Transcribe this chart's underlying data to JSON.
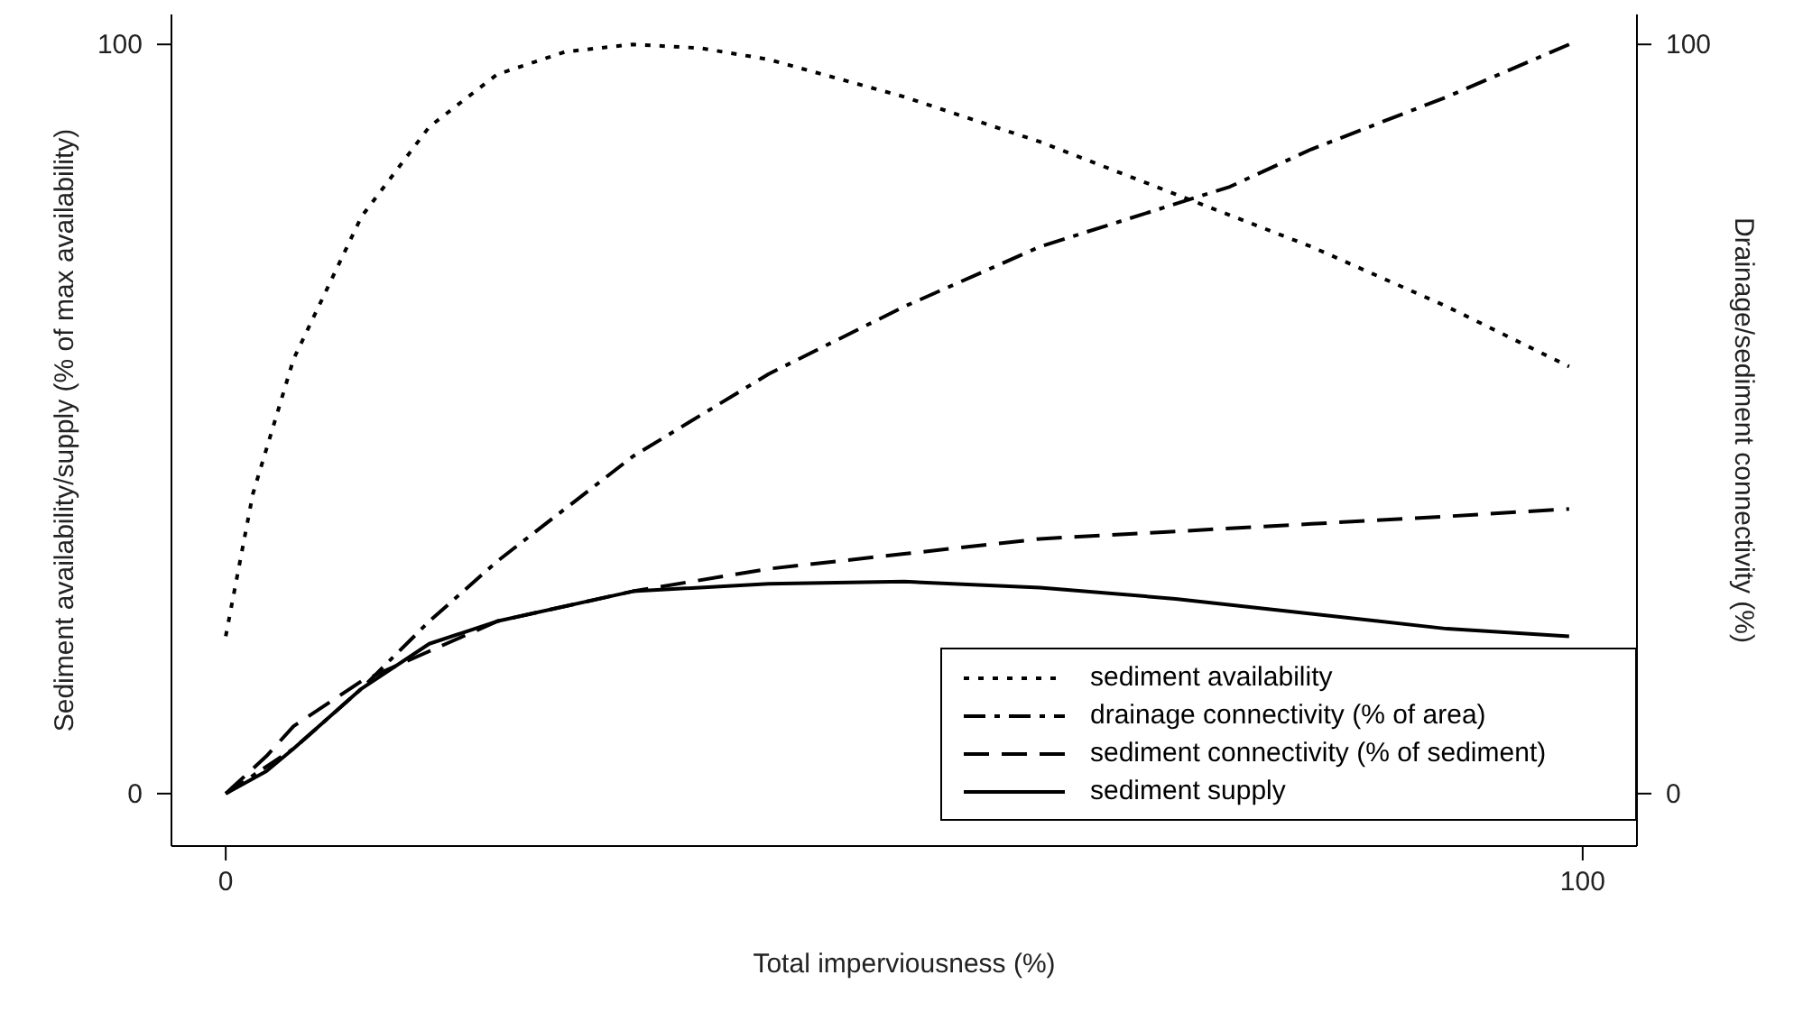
{
  "chart_data": {
    "type": "line",
    "xlabel": "Total imperviousness (%)",
    "ylabel": "Sediment availability/supply (% of max availability)",
    "y2label": "Drainage/sediment connectivity (%)",
    "xlim": [
      -4,
      104
    ],
    "xticks": [
      0,
      100
    ],
    "ylim": [
      -7,
      104
    ],
    "yticks": [
      0,
      100
    ],
    "y2lim": [
      -7,
      104
    ],
    "y2ticks": [
      0,
      100
    ],
    "grid": false,
    "legend": "bottom right",
    "marker": "none",
    "series": [
      {
        "name": "sediment availability",
        "color": "#000000",
        "line_style": "dotted",
        "x": [
          0,
          2,
          5,
          10,
          15,
          20,
          25,
          30,
          35,
          40,
          50,
          60,
          70,
          80,
          90,
          99
        ],
        "values": [
          21,
          40,
          58,
          77,
          89,
          96,
          99,
          100,
          99.5,
          98,
          93,
          87,
          80,
          73,
          65,
          57
        ]
      },
      {
        "name": "drainage connectivity (% of area)",
        "color": "#000000",
        "line_style": "dashdot",
        "x": [
          0,
          5,
          10,
          15,
          20,
          30,
          40,
          50,
          60,
          74,
          80,
          90,
          99
        ],
        "values": [
          0,
          6,
          14,
          23,
          31,
          45,
          56,
          65,
          73,
          81,
          86,
          93,
          100
        ]
      },
      {
        "name": "sediment connectivity (% of sediment)",
        "color": "#000000",
        "line_style": "dashed",
        "x": [
          0,
          3,
          5,
          10,
          15,
          20,
          30,
          40,
          50,
          60,
          70,
          80,
          90,
          99
        ],
        "values": [
          0,
          5,
          9,
          15,
          19,
          23,
          27,
          30,
          32,
          34,
          35,
          36,
          37,
          38
        ]
      },
      {
        "name": "sediment supply",
        "color": "#000000",
        "line_style": "solid",
        "x": [
          0,
          3,
          5,
          10,
          15,
          20,
          30,
          40,
          50,
          60,
          70,
          80,
          90,
          99
        ],
        "values": [
          0,
          3,
          6,
          14,
          20,
          23,
          27,
          28,
          28.3,
          27.5,
          26,
          24,
          22,
          21
        ]
      }
    ]
  }
}
